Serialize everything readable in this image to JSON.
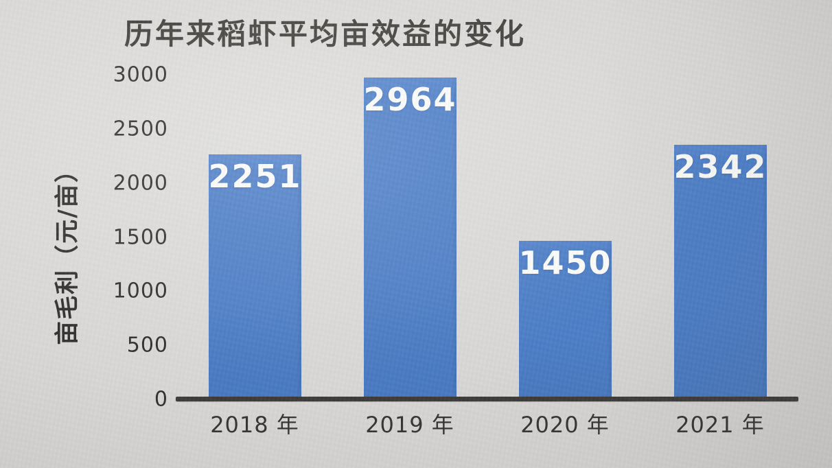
{
  "colors": {
    "bar": "#4a7cc6",
    "axis_line": "#3a3836",
    "title_text": "#3e3c39",
    "tick_text": "#2e2c2a",
    "value_label_text": "#fbfbf9",
    "background": "#d8d7d5"
  },
  "chart_data": {
    "type": "bar",
    "title": "历年来稻虾平均亩效益的变化",
    "categories": [
      "2018 年",
      "2019 年",
      "2020 年",
      "2021 年"
    ],
    "values": [
      2251,
      2964,
      1450,
      2342
    ],
    "value_labels_shown": [
      "2251",
      "2964",
      "1450",
      "2342"
    ],
    "value_label_position": "inside-top",
    "xlabel": "",
    "ylabel": "亩毛利（元/亩）",
    "ylim": [
      0,
      3000
    ],
    "yticks": [
      0,
      500,
      1000,
      1500,
      2000,
      2500,
      3000
    ],
    "grid": false,
    "legend": "none"
  }
}
